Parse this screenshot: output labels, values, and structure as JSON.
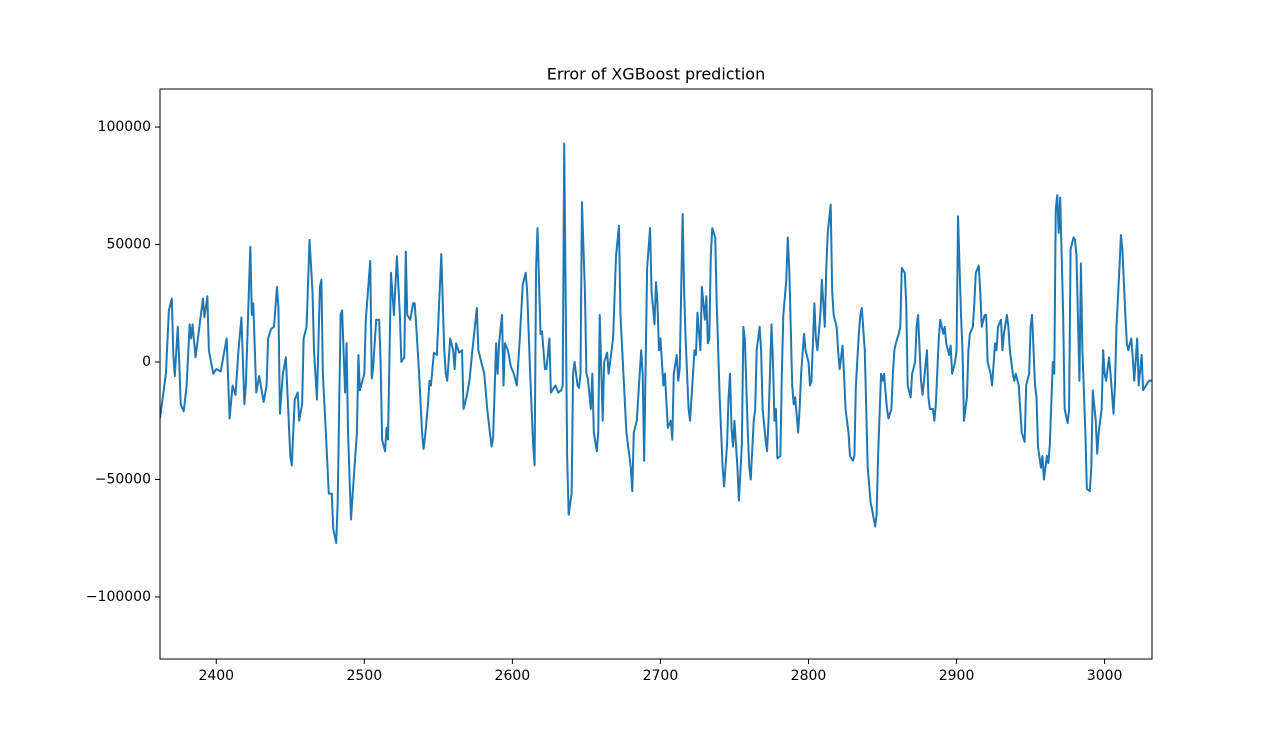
{
  "chart_data": {
    "type": "line",
    "title": "Error of XGBoost prediction",
    "color": "#1f77b4",
    "x": [
      2362,
      2366,
      2368,
      2370,
      2371,
      2372,
      2374,
      2375,
      2376,
      2378,
      2380,
      2382,
      2383,
      2384,
      2386,
      2388,
      2391,
      2392,
      2394,
      2395,
      2398,
      2400,
      2403,
      2407,
      2409,
      2411,
      2413,
      2415,
      2417,
      2419,
      2420,
      2422,
      2423,
      2424,
      2425,
      2427,
      2429,
      2432,
      2434,
      2435,
      2437,
      2439,
      2441,
      2442,
      2443,
      2445,
      2447,
      2450,
      2451,
      2453,
      2455,
      2456,
      2458,
      2459,
      2461,
      2463,
      2465,
      2466,
      2468,
      2470,
      2471,
      2472,
      2474,
      2476,
      2478,
      2479,
      2481,
      2482,
      2484,
      2485,
      2487,
      2488,
      2489,
      2491,
      2493,
      2495,
      2496,
      2497,
      2500,
      2501,
      2504,
      2505,
      2506,
      2508,
      2510,
      2511,
      2512,
      2514,
      2515,
      2516,
      2518,
      2520,
      2522,
      2524,
      2525,
      2527,
      2528,
      2529,
      2531,
      2533,
      2534,
      2535,
      2537,
      2539,
      2540,
      2541,
      2543,
      2544,
      2545,
      2547,
      2549,
      2552,
      2554,
      2555,
      2556,
      2558,
      2560,
      2561,
      2562,
      2564,
      2566,
      2567,
      2569,
      2571,
      2573,
      2576,
      2577,
      2579,
      2581,
      2583,
      2585,
      2586,
      2587,
      2589,
      2590,
      2591,
      2593,
      2594,
      2595,
      2597,
      2599,
      2601,
      2603,
      2605,
      2607,
      2609,
      2610,
      2612,
      2614,
      2615,
      2616,
      2617,
      2619,
      2620,
      2622,
      2623,
      2625,
      2626,
      2627,
      2629,
      2631,
      2633,
      2634,
      2635,
      2637,
      2638,
      2640,
      2641,
      2642,
      2644,
      2645,
      2646,
      2647,
      2649,
      2650,
      2651,
      2653,
      2654,
      2655,
      2657,
      2658,
      2659,
      2661,
      2662,
      2664,
      2665,
      2666,
      2668,
      2670,
      2672,
      2673,
      2675,
      2677,
      2680,
      2681,
      2682,
      2684,
      2685,
      2687,
      2688,
      2689,
      2691,
      2693,
      2694,
      2696,
      2697,
      2698,
      2699,
      2700,
      2702,
      2703,
      2705,
      2707,
      2708,
      2709,
      2711,
      2712,
      2713,
      2715,
      2716,
      2717,
      2719,
      2720,
      2721,
      2723,
      2724,
      2725,
      2727,
      2728,
      2730,
      2731,
      2732,
      2733,
      2734,
      2735,
      2737,
      2738,
      2739,
      2740,
      2742,
      2743,
      2745,
      2746,
      2747,
      2748,
      2749,
      2750,
      2752,
      2753,
      2755,
      2756,
      2757,
      2759,
      2760,
      2761,
      2763,
      2764,
      2765,
      2767,
      2768,
      2769,
      2771,
      2772,
      2773,
      2775,
      2776,
      2777,
      2778,
      2779,
      2781,
      2782,
      2783,
      2785,
      2786,
      2787,
      2789,
      2790,
      2791,
      2793,
      2794,
      2795,
      2797,
      2798,
      2800,
      2801,
      2802,
      2804,
      2805,
      2806,
      2808,
      2809,
      2811,
      2812,
      2813,
      2815,
      2816,
      2817,
      2819,
      2820,
      2821,
      2823,
      2824,
      2825,
      2827,
      2828,
      2830,
      2831,
      2832,
      2834,
      2835,
      2836,
      2838,
      2839,
      2840,
      2842,
      2843,
      2845,
      2846,
      2847,
      2849,
      2850,
      2851,
      2853,
      2854,
      2856,
      2857,
      2858,
      2859,
      2861,
      2862,
      2863,
      2865,
      2866,
      2867,
      2869,
      2870,
      2872,
      2873,
      2874,
      2876,
      2877,
      2878,
      2880,
      2881,
      2882,
      2884,
      2885,
      2886,
      2888,
      2889,
      2891,
      2892,
      2893,
      2895,
      2896,
      2897,
      2899,
      2900,
      2901,
      2903,
      2904,
      2905,
      2907,
      2908,
      2909,
      2911,
      2912,
      2913,
      2915,
      2916,
      2917,
      2919,
      2920,
      2921,
      2923,
      2924,
      2926,
      2927,
      2928,
      2930,
      2931,
      2932,
      2934,
      2935,
      2936,
      2938,
      2939,
      2940,
      2942,
      2943,
      2944,
      2946,
      2947,
      2949,
      2950,
      2951,
      2953,
      2954,
      2955,
      2957,
      2958,
      2959,
      2961,
      2962,
      2963,
      2965,
      2966,
      2967,
      2968,
      2969,
      2970,
      2972,
      2973,
      2975,
      2976,
      2977,
      2979,
      2980,
      2981,
      2983,
      2984,
      2985,
      2987,
      2988,
      2990,
      2991,
      2992,
      2994,
      2995,
      2996,
      2998,
      2999,
      3000,
      3001,
      3003,
      3004,
      3006,
      3007,
      3008,
      3010,
      3011,
      3012,
      3014,
      3015,
      3016,
      3018,
      3019,
      3020,
      3022,
      3023,
      3025,
      3026,
      3028,
      3030,
      3032
    ],
    "values": [
      -24000,
      -5000,
      22000,
      27000,
      3000,
      -6000,
      15000,
      0,
      -18000,
      -21000,
      -10000,
      16000,
      10000,
      16000,
      2000,
      12000,
      27000,
      19000,
      28000,
      5000,
      -5000,
      -3000,
      -4000,
      10000,
      -24000,
      -10000,
      -14000,
      5000,
      19000,
      -18000,
      -10000,
      30000,
      49000,
      20000,
      25000,
      -13000,
      -6000,
      -17000,
      -10000,
      10000,
      14000,
      15000,
      32000,
      23000,
      -22000,
      -5000,
      2000,
      -40000,
      -44000,
      -16000,
      -13000,
      -25000,
      -18000,
      10000,
      15000,
      52000,
      30000,
      5000,
      -16000,
      32000,
      35000,
      -5000,
      -30000,
      -56000,
      -56000,
      -71000,
      -77000,
      -60000,
      20000,
      22000,
      -13000,
      8000,
      -30000,
      -67000,
      -48000,
      -30000,
      3000,
      -12000,
      -5000,
      18000,
      43000,
      -7000,
      -2000,
      18000,
      18000,
      0,
      -33000,
      -38000,
      -28000,
      -33000,
      38000,
      20000,
      45000,
      20000,
      0,
      2000,
      47000,
      20000,
      18000,
      25000,
      25000,
      16000,
      -5000,
      -30000,
      -37000,
      -32000,
      -18000,
      -8000,
      -10000,
      4000,
      3000,
      46000,
      5000,
      -5000,
      -8000,
      10000,
      5000,
      -3000,
      8000,
      4000,
      5000,
      -20000,
      -15000,
      -8000,
      5000,
      23000,
      5000,
      0,
      -5000,
      -20000,
      -31000,
      -36000,
      -32000,
      8000,
      -5000,
      8000,
      20000,
      -10000,
      8000,
      5000,
      -2000,
      -5000,
      -10000,
      10000,
      33000,
      38000,
      30000,
      -5000,
      -35000,
      -44000,
      40000,
      57000,
      12000,
      13000,
      -3000,
      -3000,
      10000,
      -13000,
      -12000,
      -10000,
      -13000,
      -12000,
      -10000,
      93000,
      -40000,
      -65000,
      -56000,
      -5000,
      0,
      -10000,
      -11000,
      -5000,
      68000,
      30000,
      -5000,
      -7000,
      -20000,
      -5000,
      -30000,
      -38000,
      -30000,
      20000,
      -25000,
      0,
      4000,
      -5000,
      0,
      10000,
      45000,
      58000,
      20000,
      -5000,
      -30000,
      -45000,
      -55000,
      -30000,
      -25000,
      -15000,
      5000,
      -5000,
      -42000,
      40000,
      57000,
      30000,
      16000,
      34000,
      25000,
      5000,
      10000,
      -10000,
      -5000,
      -28000,
      -25000,
      -33000,
      -5000,
      3000,
      -8000,
      -3000,
      63000,
      30000,
      10000,
      -20000,
      -25000,
      -15000,
      5000,
      3000,
      21000,
      5000,
      32000,
      18000,
      28000,
      8000,
      10000,
      45000,
      57000,
      53000,
      25000,
      5000,
      -15000,
      -45000,
      -53000,
      -35000,
      -15000,
      -5000,
      -28000,
      -36000,
      -25000,
      -45000,
      -59000,
      -35000,
      15000,
      10000,
      -30000,
      -45000,
      -50000,
      -25000,
      -20000,
      5000,
      15000,
      5000,
      -20000,
      -33000,
      -38000,
      -25000,
      16000,
      0,
      -25000,
      -20000,
      -41000,
      -40000,
      -5000,
      20000,
      35000,
      53000,
      40000,
      -10000,
      -18000,
      -15000,
      -30000,
      -20000,
      -5000,
      12000,
      5000,
      0,
      -10000,
      -8000,
      25000,
      10000,
      5000,
      20000,
      35000,
      15000,
      40000,
      55000,
      67000,
      30000,
      20000,
      15000,
      5000,
      -3000,
      7000,
      -5000,
      -20000,
      -30000,
      -40000,
      -42000,
      -40000,
      -10000,
      12000,
      20000,
      23000,
      5000,
      -20000,
      -45000,
      -60000,
      -63000,
      -70000,
      -65000,
      -40000,
      -5000,
      -8000,
      -5000,
      -20000,
      -24000,
      -20000,
      -5000,
      5000,
      8000,
      12000,
      15000,
      40000,
      38000,
      25000,
      -10000,
      -15000,
      -5000,
      0,
      15000,
      20000,
      -8000,
      -14000,
      -8000,
      5000,
      -15000,
      -20000,
      -20000,
      -25000,
      -18000,
      10000,
      18000,
      12000,
      15000,
      8000,
      3000,
      7000,
      -5000,
      0,
      5000,
      62000,
      20000,
      5000,
      -25000,
      -15000,
      5000,
      12000,
      15000,
      25000,
      38000,
      41000,
      30000,
      15000,
      20000,
      20000,
      0,
      -5000,
      -10000,
      8000,
      5000,
      15000,
      18000,
      5000,
      12000,
      20000,
      15000,
      5000,
      -5000,
      -8000,
      -5000,
      -10000,
      -20000,
      -30000,
      -34000,
      -10000,
      -5000,
      15000,
      20000,
      -10000,
      -15000,
      -36000,
      -45000,
      -40000,
      -50000,
      -40000,
      -43000,
      -35000,
      0,
      -5000,
      65000,
      71000,
      55000,
      70000,
      20000,
      -20000,
      -26000,
      -20000,
      48000,
      53000,
      52000,
      45000,
      -8000,
      42000,
      5000,
      -30000,
      -54000,
      -55000,
      -45000,
      -12000,
      -25000,
      -39000,
      -30000,
      -20000,
      5000,
      -5000,
      -8000,
      2000,
      -5000,
      -22000,
      -10000,
      15000,
      40000,
      54000,
      48000,
      20000,
      8000,
      5000,
      10000,
      2000,
      -8000,
      10000,
      -10000,
      3000,
      -12000,
      -10000,
      -8000,
      -8000
    ],
    "xlim": [
      2362,
      3032
    ],
    "ylim": [
      -126400,
      116200
    ],
    "xticks": [
      2400,
      2500,
      2600,
      2700,
      2800,
      2900,
      3000
    ],
    "yticks": [
      {
        "value": -100000,
        "label": "−100000"
      },
      {
        "value": -50000,
        "label": "−50000"
      },
      0,
      50000,
      100000
    ]
  }
}
